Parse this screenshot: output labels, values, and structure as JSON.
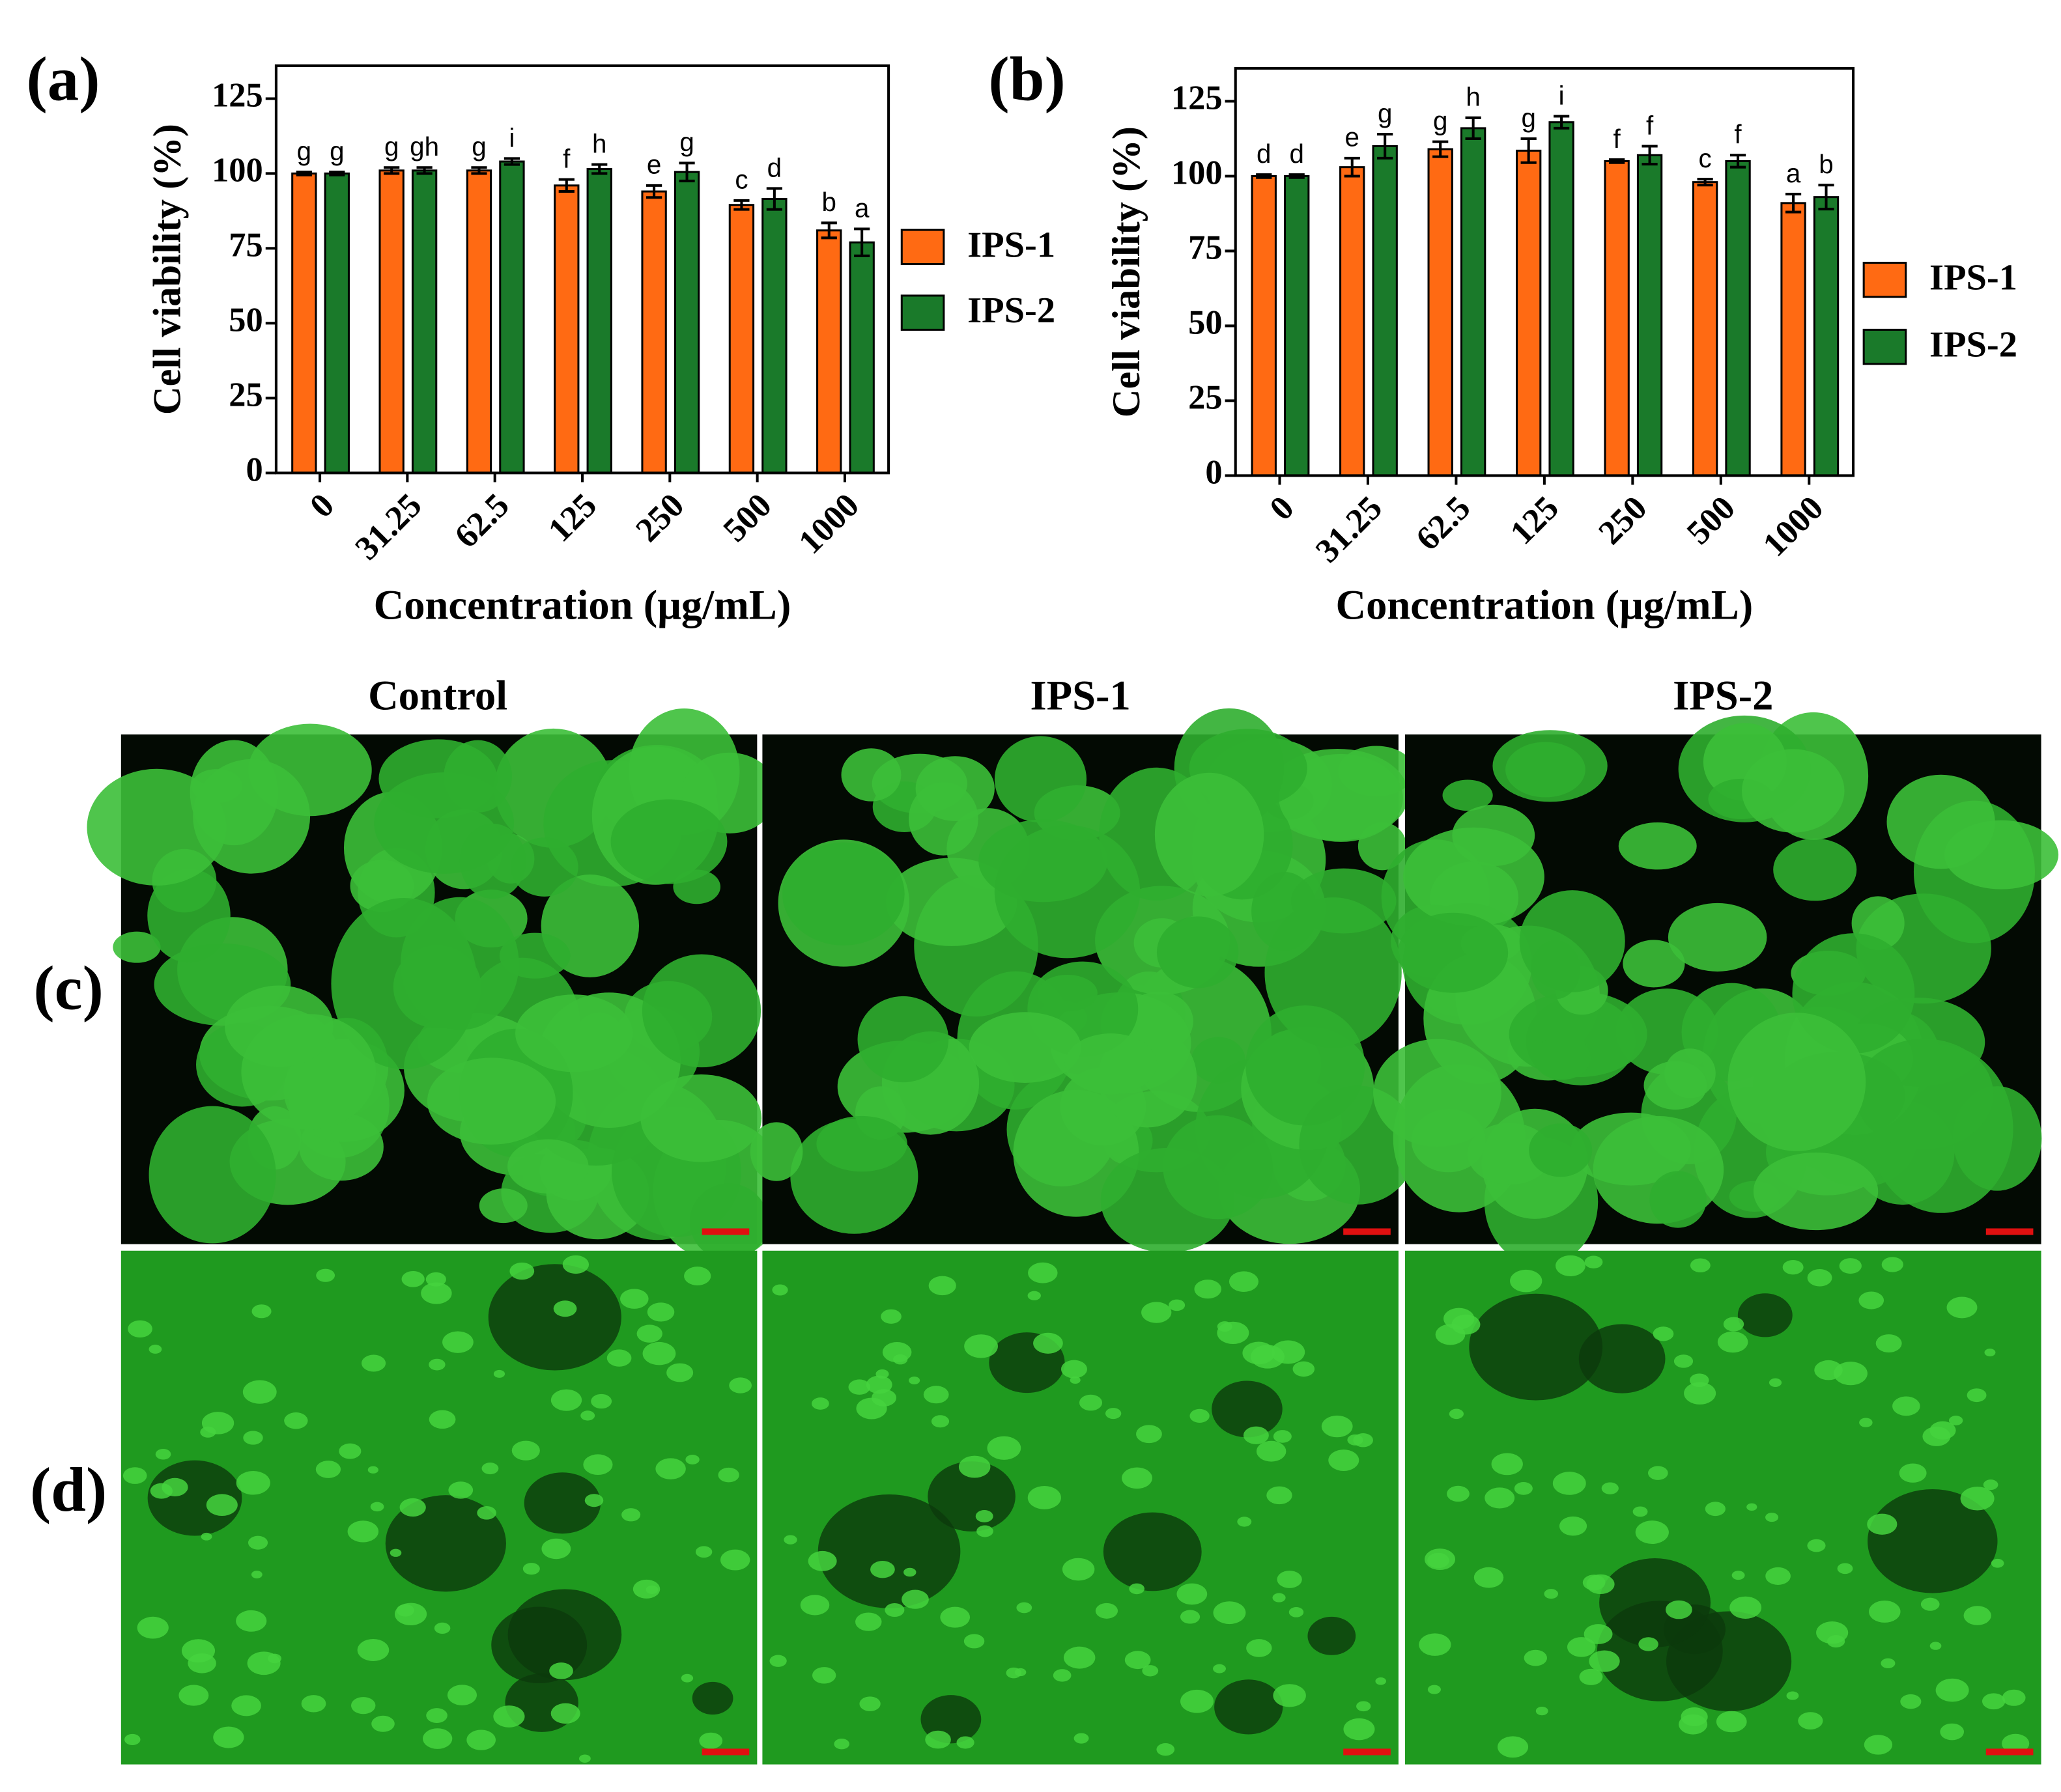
{
  "chart_data": [
    {
      "type": "bar",
      "label": "(a)",
      "ylabel": "Cell viability (%)",
      "xlabel": "Concentration (μg/mL)",
      "categories": [
        "0",
        "31.25",
        "62.5",
        "125",
        "250",
        "500",
        "1000"
      ],
      "ylim": [
        0,
        136
      ],
      "yticks": [
        0,
        25,
        50,
        75,
        100,
        125
      ],
      "series": [
        {
          "name": "IPS-1",
          "color": "#ff6a13",
          "values": [
            100,
            101,
            101,
            96,
            94,
            89.5,
            81
          ],
          "errors": [
            0.5,
            1,
            1,
            2,
            2,
            1.5,
            2.5
          ],
          "annotations": [
            "g",
            "g",
            "g",
            "f",
            "e",
            "c",
            "b"
          ]
        },
        {
          "name": "IPS-2",
          "color": "#1a7a2a",
          "values": [
            100,
            101,
            104,
            101.5,
            100.5,
            91.5,
            77
          ],
          "errors": [
            0.5,
            1,
            1,
            1.5,
            3,
            3.5,
            4.5
          ],
          "annotations": [
            "g",
            "gh",
            "i",
            "h",
            "g",
            "d",
            "a"
          ]
        }
      ]
    },
    {
      "type": "bar",
      "label": "(b)",
      "ylabel": "Cell viability (%)",
      "xlabel": "Concentration (μg/mL)",
      "categories": [
        "0",
        "31.25",
        "62.5",
        "125",
        "250",
        "500",
        "1000"
      ],
      "ylim": [
        0,
        136
      ],
      "yticks": [
        0,
        25,
        50,
        75,
        100,
        125
      ],
      "series": [
        {
          "name": "IPS-1",
          "color": "#ff6a13",
          "values": [
            100,
            103,
            109,
            108.5,
            105,
            98,
            91
          ],
          "errors": [
            0.5,
            3,
            2.5,
            4,
            0.5,
            1,
            3
          ],
          "annotations": [
            "d",
            "e",
            "g",
            "g",
            "f",
            "c",
            "a"
          ]
        },
        {
          "name": "IPS-2",
          "color": "#1a7a2a",
          "values": [
            100,
            110,
            116,
            118,
            107,
            105,
            93
          ],
          "errors": [
            0.5,
            4,
            3.5,
            2,
            3,
            2,
            4
          ],
          "annotations": [
            "d",
            "g",
            "h",
            "i",
            "f",
            "f",
            "b"
          ]
        }
      ]
    }
  ],
  "images": {
    "columns": [
      "Control",
      "IPS-1",
      "IPS-2"
    ],
    "rows": [
      "(c)",
      "(d)"
    ]
  }
}
